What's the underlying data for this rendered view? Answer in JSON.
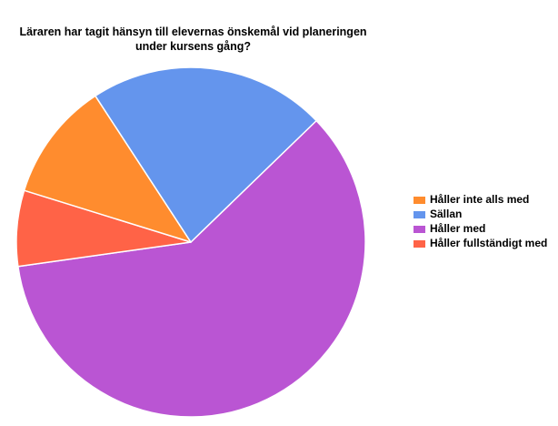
{
  "chart_data": {
    "type": "pie",
    "title_line1": "Läraren har tagit hänsyn till elevernas önskemål vid planeringen",
    "title_line2": "under kursens gång?",
    "slices": [
      {
        "label": "Håller inte alls med",
        "value": 11,
        "color": "#FF8C2E"
      },
      {
        "label": "Sällan",
        "value": 22,
        "color": "#6495ED"
      },
      {
        "label": "Håller med",
        "value": 60,
        "color": "#BA55D3"
      },
      {
        "label": "Håller fullständigt med",
        "value": 7,
        "color": "#FF6347"
      }
    ],
    "legend_position": "right"
  }
}
